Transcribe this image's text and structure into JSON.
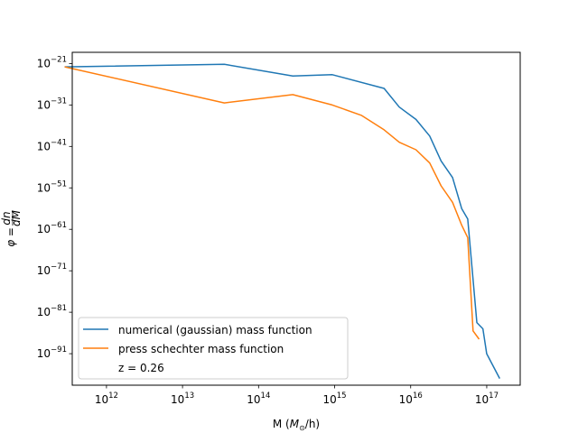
{
  "chart_data": {
    "type": "line",
    "xscale": "log",
    "yscale": "log",
    "xlim_exp": [
      11.55,
      17.44
    ],
    "ylim_exp": [
      -98.6,
      -18.3
    ],
    "xlabel_base": "M (",
    "xlabel_sym": "M",
    "xlabel_sub": "⊙",
    "xlabel_tail": "/h)",
    "ylabel_main": "φ = ",
    "ylabel_num": "dn",
    "ylabel_den": "dM",
    "x_ticks": [
      {
        "base": "10",
        "exp": "12",
        "value": 12
      },
      {
        "base": "10",
        "exp": "13",
        "value": 13
      },
      {
        "base": "10",
        "exp": "14",
        "value": 14
      },
      {
        "base": "10",
        "exp": "15",
        "value": 15
      },
      {
        "base": "10",
        "exp": "16",
        "value": 16
      },
      {
        "base": "10",
        "exp": "17",
        "value": 17
      }
    ],
    "y_ticks": [
      {
        "base": "10",
        "exp": "−21",
        "value": -21
      },
      {
        "base": "10",
        "exp": "−31",
        "value": -31
      },
      {
        "base": "10",
        "exp": "−41",
        "value": -41
      },
      {
        "base": "10",
        "exp": "−51",
        "value": -51
      },
      {
        "base": "10",
        "exp": "−61",
        "value": -61
      },
      {
        "base": "10",
        "exp": "−71",
        "value": -71
      },
      {
        "base": "10",
        "exp": "−81",
        "value": -81
      },
      {
        "base": "10",
        "exp": "−91",
        "value": -91
      }
    ],
    "series": [
      {
        "name": "numerical (gaussian) mass function",
        "color": "#1f77b4",
        "x_exp": [
          11.45,
          13.55,
          14.45,
          14.97,
          15.65,
          15.85,
          16.07,
          16.25,
          16.4,
          16.55,
          16.67,
          16.75,
          16.87,
          16.95,
          17.0,
          17.17
        ],
        "y_exp": [
          -21.8,
          -21.2,
          -24.0,
          -23.7,
          -27.0,
          -31.5,
          -34.5,
          -38.5,
          -44.5,
          -48.5,
          -56.0,
          -58.5,
          -83.5,
          -85.0,
          -91.0,
          -97.0
        ]
      },
      {
        "name": "press schechter mass function",
        "color": "#ff7f0e",
        "x_exp": [
          11.45,
          13.55,
          14.45,
          14.97,
          15.35,
          15.65,
          15.85,
          16.07,
          16.25,
          16.4,
          16.55,
          16.67,
          16.75,
          16.82,
          16.9
        ],
        "y_exp": [
          -21.8,
          -30.5,
          -28.5,
          -31.0,
          -33.5,
          -37.0,
          -40.0,
          -41.8,
          -45.0,
          -50.5,
          -54.5,
          -60.0,
          -63.0,
          -85.5,
          -87.5
        ]
      }
    ],
    "legend": {
      "placement": "lower-left",
      "entries": [
        "numerical (gaussian) mass function",
        "press schechter mass function"
      ],
      "note": "z = 0.26"
    }
  }
}
